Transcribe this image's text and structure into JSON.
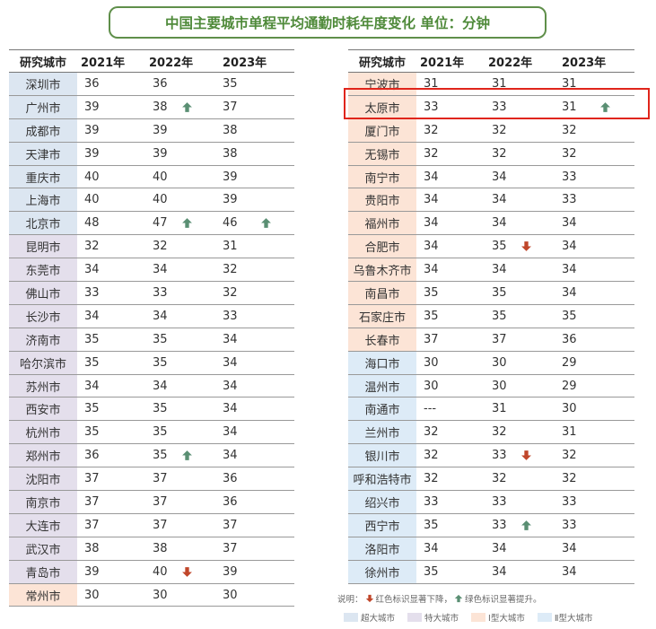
{
  "title": "中国主要城市单程平均通勤时耗年度变化  单位：分钟",
  "headers": [
    "研究城市",
    "2021年",
    "2022年",
    "2023年"
  ],
  "colors": {
    "super": "#dce6f1",
    "mega": "#e4dfec",
    "big1": "#fce4d6",
    "big2": "#ddebf7",
    "down": "#c0462a",
    "up": "#5a8f73",
    "highlight": "#e0251b"
  },
  "left_rows": [
    {
      "city": "深圳市",
      "type": "super",
      "y2021": "36",
      "y2022": "36",
      "up22": false,
      "down22": false,
      "y2023": "35",
      "up23": false,
      "down23": false
    },
    {
      "city": "广州市",
      "type": "super",
      "y2021": "39",
      "y2022": "38",
      "up22": true,
      "down22": false,
      "y2023": "37",
      "up23": false,
      "down23": false
    },
    {
      "city": "成都市",
      "type": "super",
      "y2021": "39",
      "y2022": "39",
      "up22": false,
      "down22": false,
      "y2023": "38",
      "up23": false,
      "down23": false
    },
    {
      "city": "天津市",
      "type": "super",
      "y2021": "39",
      "y2022": "39",
      "up22": false,
      "down22": false,
      "y2023": "38",
      "up23": false,
      "down23": false
    },
    {
      "city": "重庆市",
      "type": "super",
      "y2021": "40",
      "y2022": "40",
      "up22": false,
      "down22": false,
      "y2023": "39",
      "up23": false,
      "down23": false
    },
    {
      "city": "上海市",
      "type": "super",
      "y2021": "40",
      "y2022": "40",
      "up22": false,
      "down22": false,
      "y2023": "39",
      "up23": false,
      "down23": false
    },
    {
      "city": "北京市",
      "type": "super",
      "y2021": "48",
      "y2022": "47",
      "up22": true,
      "down22": false,
      "y2023": "46",
      "up23": true,
      "down23": false
    },
    {
      "city": "昆明市",
      "type": "mega",
      "y2021": "32",
      "y2022": "32",
      "up22": false,
      "down22": false,
      "y2023": "31",
      "up23": false,
      "down23": false
    },
    {
      "city": "东莞市",
      "type": "mega",
      "y2021": "34",
      "y2022": "34",
      "up22": false,
      "down22": false,
      "y2023": "32",
      "up23": false,
      "down23": false
    },
    {
      "city": "佛山市",
      "type": "mega",
      "y2021": "33",
      "y2022": "33",
      "up22": false,
      "down22": false,
      "y2023": "32",
      "up23": false,
      "down23": false
    },
    {
      "city": "长沙市",
      "type": "mega",
      "y2021": "34",
      "y2022": "34",
      "up22": false,
      "down22": false,
      "y2023": "33",
      "up23": false,
      "down23": false
    },
    {
      "city": "济南市",
      "type": "mega",
      "y2021": "35",
      "y2022": "35",
      "up22": false,
      "down22": false,
      "y2023": "34",
      "up23": false,
      "down23": false
    },
    {
      "city": "哈尔滨市",
      "type": "mega",
      "y2021": "35",
      "y2022": "35",
      "up22": false,
      "down22": false,
      "y2023": "34",
      "up23": false,
      "down23": false
    },
    {
      "city": "苏州市",
      "type": "mega",
      "y2021": "34",
      "y2022": "34",
      "up22": false,
      "down22": false,
      "y2023": "34",
      "up23": false,
      "down23": false
    },
    {
      "city": "西安市",
      "type": "mega",
      "y2021": "35",
      "y2022": "35",
      "up22": false,
      "down22": false,
      "y2023": "34",
      "up23": false,
      "down23": false
    },
    {
      "city": "杭州市",
      "type": "mega",
      "y2021": "35",
      "y2022": "35",
      "up22": false,
      "down22": false,
      "y2023": "34",
      "up23": false,
      "down23": false
    },
    {
      "city": "郑州市",
      "type": "mega",
      "y2021": "36",
      "y2022": "35",
      "up22": true,
      "down22": false,
      "y2023": "34",
      "up23": false,
      "down23": false
    },
    {
      "city": "沈阳市",
      "type": "mega",
      "y2021": "37",
      "y2022": "37",
      "up22": false,
      "down22": false,
      "y2023": "36",
      "up23": false,
      "down23": false
    },
    {
      "city": "南京市",
      "type": "mega",
      "y2021": "37",
      "y2022": "37",
      "up22": false,
      "down22": false,
      "y2023": "36",
      "up23": false,
      "down23": false
    },
    {
      "city": "大连市",
      "type": "mega",
      "y2021": "37",
      "y2022": "37",
      "up22": false,
      "down22": false,
      "y2023": "37",
      "up23": false,
      "down23": false
    },
    {
      "city": "武汉市",
      "type": "mega",
      "y2021": "38",
      "y2022": "38",
      "up22": false,
      "down22": false,
      "y2023": "37",
      "up23": false,
      "down23": false
    },
    {
      "city": "青岛市",
      "type": "mega",
      "y2021": "39",
      "y2022": "40",
      "up22": false,
      "down22": true,
      "y2023": "39",
      "up23": false,
      "down23": false
    },
    {
      "city": "常州市",
      "type": "big1",
      "y2021": "30",
      "y2022": "30",
      "up22": false,
      "down22": false,
      "y2023": "30",
      "up23": false,
      "down23": false
    }
  ],
  "right_rows": [
    {
      "city": "宁波市",
      "type": "big1",
      "y2021": "31",
      "y2022": "31",
      "up22": false,
      "down22": false,
      "y2023": "31",
      "up23": false,
      "down23": false
    },
    {
      "city": "太原市",
      "type": "big1",
      "y2021": "33",
      "y2022": "33",
      "up22": false,
      "down22": false,
      "y2023": "31",
      "up23": true,
      "down23": false
    },
    {
      "city": "厦门市",
      "type": "big1",
      "y2021": "32",
      "y2022": "32",
      "up22": false,
      "down22": false,
      "y2023": "32",
      "up23": false,
      "down23": false
    },
    {
      "city": "无锡市",
      "type": "big1",
      "y2021": "32",
      "y2022": "32",
      "up22": false,
      "down22": false,
      "y2023": "32",
      "up23": false,
      "down23": false
    },
    {
      "city": "南宁市",
      "type": "big1",
      "y2021": "34",
      "y2022": "34",
      "up22": false,
      "down22": false,
      "y2023": "33",
      "up23": false,
      "down23": false
    },
    {
      "city": "贵阳市",
      "type": "big1",
      "y2021": "34",
      "y2022": "34",
      "up22": false,
      "down22": false,
      "y2023": "33",
      "up23": false,
      "down23": false
    },
    {
      "city": "福州市",
      "type": "big1",
      "y2021": "34",
      "y2022": "34",
      "up22": false,
      "down22": false,
      "y2023": "34",
      "up23": false,
      "down23": false
    },
    {
      "city": "合肥市",
      "type": "big1",
      "y2021": "34",
      "y2022": "35",
      "up22": false,
      "down22": true,
      "y2023": "34",
      "up23": false,
      "down23": false
    },
    {
      "city": "乌鲁木齐市",
      "type": "big1",
      "y2021": "34",
      "y2022": "34",
      "up22": false,
      "down22": false,
      "y2023": "34",
      "up23": false,
      "down23": false
    },
    {
      "city": "南昌市",
      "type": "big1",
      "y2021": "35",
      "y2022": "35",
      "up22": false,
      "down22": false,
      "y2023": "34",
      "up23": false,
      "down23": false
    },
    {
      "city": "石家庄市",
      "type": "big1",
      "y2021": "35",
      "y2022": "35",
      "up22": false,
      "down22": false,
      "y2023": "35",
      "up23": false,
      "down23": false
    },
    {
      "city": "长春市",
      "type": "big1",
      "y2021": "37",
      "y2022": "37",
      "up22": false,
      "down22": false,
      "y2023": "36",
      "up23": false,
      "down23": false
    },
    {
      "city": "海口市",
      "type": "big2",
      "y2021": "30",
      "y2022": "30",
      "up22": false,
      "down22": false,
      "y2023": "29",
      "up23": false,
      "down23": false
    },
    {
      "city": "温州市",
      "type": "big2",
      "y2021": "30",
      "y2022": "30",
      "up22": false,
      "down22": false,
      "y2023": "29",
      "up23": false,
      "down23": false
    },
    {
      "city": "南通市",
      "type": "big2",
      "y2021": "---",
      "y2022": "31",
      "up22": false,
      "down22": false,
      "y2023": "30",
      "up23": false,
      "down23": false
    },
    {
      "city": "兰州市",
      "type": "big2",
      "y2021": "32",
      "y2022": "32",
      "up22": false,
      "down22": false,
      "y2023": "31",
      "up23": false,
      "down23": false
    },
    {
      "city": "银川市",
      "type": "big2",
      "y2021": "32",
      "y2022": "33",
      "up22": false,
      "down22": true,
      "y2023": "32",
      "up23": false,
      "down23": false
    },
    {
      "city": "呼和浩特市",
      "type": "big2",
      "y2021": "32",
      "y2022": "32",
      "up22": false,
      "down22": false,
      "y2023": "32",
      "up23": false,
      "down23": false
    },
    {
      "city": "绍兴市",
      "type": "big2",
      "y2021": "33",
      "y2022": "33",
      "up22": false,
      "down22": false,
      "y2023": "33",
      "up23": false,
      "down23": false
    },
    {
      "city": "西宁市",
      "type": "big2",
      "y2021": "35",
      "y2022": "33",
      "up22": true,
      "down22": false,
      "y2023": "33",
      "up23": false,
      "down23": false
    },
    {
      "city": "洛阳市",
      "type": "big2",
      "y2021": "34",
      "y2022": "34",
      "up22": false,
      "down22": false,
      "y2023": "34",
      "up23": false,
      "down23": false
    },
    {
      "city": "徐州市",
      "type": "big2",
      "y2021": "35",
      "y2022": "34",
      "up22": false,
      "down22": false,
      "y2023": "34",
      "up23": false,
      "down23": false
    }
  ],
  "note": {
    "prefix": "说明：",
    "down_text": "红色标识显著下降，",
    "up_text": "绿色标识显著提升。"
  },
  "legend": [
    {
      "label": "超大城市",
      "type": "super"
    },
    {
      "label": "特大城市",
      "type": "mega"
    },
    {
      "label": "Ⅰ型大城市",
      "type": "big1"
    },
    {
      "label": "Ⅱ型大城市",
      "type": "big2"
    }
  ]
}
